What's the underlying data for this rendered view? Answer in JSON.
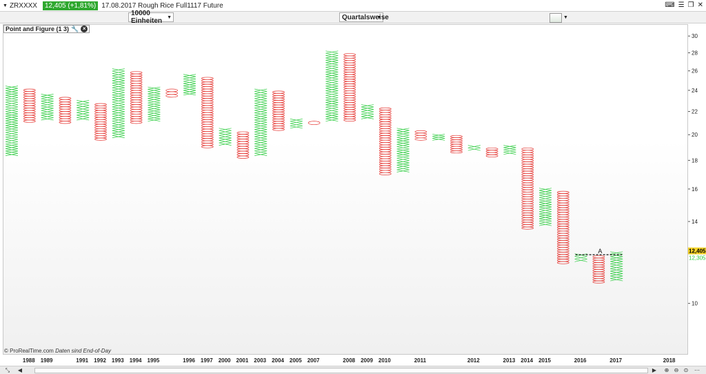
{
  "header": {
    "symbol": "ZRXXXX",
    "price_badge": "12,405 (+1,81%)",
    "title": "17.08.2017 Rough Rice Full1117 Future"
  },
  "toolbar": {
    "box_size": "10000 Einheiten",
    "period": "Quartalsweise"
  },
  "indicator": {
    "label": "Point and Figure (1 3)"
  },
  "credit": {
    "brand": "© ProRealTime.com",
    "note": "Daten sind End-of-Day"
  },
  "colors": {
    "x_color": "#2ecc40",
    "o_color": "#e53935",
    "last_price_bg": "#f5d327",
    "second_price_color": "#2ecc40"
  },
  "chart_data": {
    "type": "point-and-figure",
    "box_size_pct": 1,
    "reversal": 3,
    "y_scale": "log",
    "ylim": [
      8.1,
      31.5
    ],
    "yticks": [
      10,
      12,
      14,
      16,
      18,
      20,
      22,
      24,
      26,
      28,
      30
    ],
    "columns": [
      {
        "kind": "X",
        "low": 18.4,
        "high": 24.5
      },
      {
        "kind": "O",
        "low": 21.1,
        "high": 24.2
      },
      {
        "kind": "X",
        "low": 21.3,
        "high": 23.7
      },
      {
        "kind": "O",
        "low": 21.0,
        "high": 23.4
      },
      {
        "kind": "X",
        "low": 21.3,
        "high": 23.1
      },
      {
        "kind": "O",
        "low": 19.6,
        "high": 22.8
      },
      {
        "kind": "X",
        "low": 19.8,
        "high": 26.3
      },
      {
        "kind": "O",
        "low": 21.0,
        "high": 26.0
      },
      {
        "kind": "X",
        "low": 21.2,
        "high": 24.4
      },
      {
        "kind": "O",
        "low": 23.4,
        "high": 24.2
      },
      {
        "kind": "X",
        "low": 23.6,
        "high": 25.7
      },
      {
        "kind": "O",
        "low": 19.0,
        "high": 25.4
      },
      {
        "kind": "X",
        "low": 19.2,
        "high": 20.6
      },
      {
        "kind": "O",
        "low": 18.2,
        "high": 20.3
      },
      {
        "kind": "X",
        "low": 18.4,
        "high": 24.2
      },
      {
        "kind": "O",
        "low": 20.4,
        "high": 24.0
      },
      {
        "kind": "X",
        "low": 20.6,
        "high": 21.4
      },
      {
        "kind": "O",
        "low": 20.9,
        "high": 21.2
      },
      {
        "kind": "X",
        "low": 21.2,
        "high": 28.3
      },
      {
        "kind": "O",
        "low": 21.2,
        "high": 28.0
      },
      {
        "kind": "X",
        "low": 21.4,
        "high": 22.7
      },
      {
        "kind": "O",
        "low": 17.0,
        "high": 22.4
      },
      {
        "kind": "X",
        "low": 17.2,
        "high": 20.6
      },
      {
        "kind": "O",
        "low": 19.6,
        "high": 20.4
      },
      {
        "kind": "X",
        "low": 19.6,
        "high": 20.1
      },
      {
        "kind": "O",
        "low": 18.6,
        "high": 20.0
      },
      {
        "kind": "X",
        "low": 18.8,
        "high": 19.2
      },
      {
        "kind": "O",
        "low": 18.3,
        "high": 19.0
      },
      {
        "kind": "X",
        "low": 18.5,
        "high": 19.2
      },
      {
        "kind": "O",
        "low": 13.6,
        "high": 19.0
      },
      {
        "kind": "X",
        "low": 13.8,
        "high": 16.1
      },
      {
        "kind": "O",
        "low": 11.8,
        "high": 15.9
      },
      {
        "kind": "X",
        "low": 11.9,
        "high": 12.3
      },
      {
        "kind": "O",
        "low": 10.9,
        "high": 12.2
      },
      {
        "kind": "X",
        "low": 11.0,
        "high": 12.4
      }
    ],
    "year_labels": [
      {
        "label": "1988",
        "col": 1
      },
      {
        "label": "1989",
        "col": 2
      },
      {
        "label": "1991",
        "col": 4
      },
      {
        "label": "1992",
        "col": 5
      },
      {
        "label": "1993",
        "col": 6
      },
      {
        "label": "1994",
        "col": 7
      },
      {
        "label": "1995",
        "col": 8
      },
      {
        "label": "1996",
        "col": 10
      },
      {
        "label": "1997",
        "col": 11
      },
      {
        "label": "2000",
        "col": 12
      },
      {
        "label": "2001",
        "col": 13
      },
      {
        "label": "2003",
        "col": 14
      },
      {
        "label": "2004",
        "col": 15
      },
      {
        "label": "2005",
        "col": 16
      },
      {
        "label": "2007",
        "col": 17
      },
      {
        "label": "2008",
        "col": 19
      },
      {
        "label": "2009",
        "col": 20
      },
      {
        "label": "2010",
        "col": 21
      },
      {
        "label": "2011",
        "col": 23
      },
      {
        "label": "2012",
        "col": 26
      },
      {
        "label": "2013",
        "col": 28
      },
      {
        "label": "2014",
        "col": 29
      },
      {
        "label": "2015",
        "col": 30
      },
      {
        "label": "2016",
        "col": 32
      },
      {
        "label": "2017",
        "col": 34
      },
      {
        "label": "2018",
        "col": 37
      }
    ],
    "last_price": "12,405",
    "second_price": "12,305",
    "marker": {
      "label": "A",
      "value": 12.25,
      "from_col": 32,
      "to_col": 34
    }
  }
}
